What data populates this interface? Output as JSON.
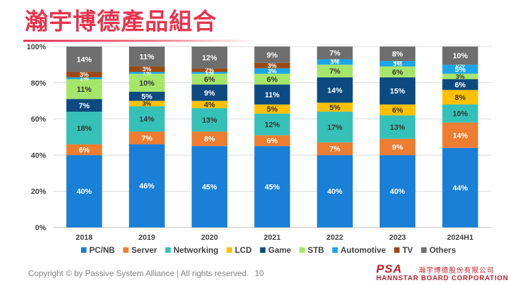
{
  "slide": {
    "title": "瀚宇博德產品組合",
    "copyright": "Copyright © by Passive System Alliance | All rights reserved.",
    "page_number": "10",
    "logo_mark": "PSA",
    "logo_company_cn": "瀚宇博德股份有限公司",
    "logo_company_en": "HANNSTAR BOARD CORPORATION"
  },
  "colors": {
    "title": "#e8344e",
    "PC/NB": "#1a7fd6",
    "Server": "#ed7d31",
    "Networking": "#36c1b8",
    "LCD": "#ffc000",
    "Game": "#0c4a80",
    "STB": "#a5e66a",
    "Automotive": "#1ba5e8",
    "TV": "#9b4a12",
    "Others": "#6e6e6e"
  },
  "chart_data": {
    "type": "bar",
    "stacked": true,
    "categories": [
      "2018",
      "2019",
      "2020",
      "2021",
      "2022",
      "2023",
      "2024H1"
    ],
    "ylim": [
      0,
      100
    ],
    "yticks": [
      "0%",
      "20%",
      "40%",
      "60%",
      "80%",
      "100%"
    ],
    "grid": true,
    "legend_position": "bottom",
    "series": [
      {
        "name": "PC/NB",
        "values": [
          40,
          46,
          45,
          45,
          40,
          40,
          44
        ],
        "labels": [
          "40%",
          "46%",
          "45%",
          "45%",
          "40%",
          "40%",
          "44%"
        ]
      },
      {
        "name": "Server",
        "values": [
          6,
          7,
          8,
          6,
          7,
          9,
          14
        ],
        "labels": [
          "6%",
          "7%",
          "8%",
          "6%",
          "7%",
          "9%",
          "14%"
        ]
      },
      {
        "name": "Networking",
        "values": [
          18,
          14,
          13,
          12,
          17,
          13,
          10
        ],
        "labels": [
          "18%",
          "14%",
          "13%",
          "12%",
          "17%",
          "13%",
          "10%"
        ]
      },
      {
        "name": "LCD",
        "values": [
          0,
          3,
          4,
          5,
          5,
          6,
          8
        ],
        "labels": [
          "",
          "3%",
          "4%",
          "5%",
          "5%",
          "6%",
          "8%"
        ]
      },
      {
        "name": "Game",
        "values": [
          7,
          5,
          9,
          11,
          14,
          15,
          6
        ],
        "labels": [
          "7%",
          "5%",
          "9%",
          "11%",
          "14%",
          "15%",
          "6%"
        ]
      },
      {
        "name": "STB",
        "values": [
          11,
          10,
          6,
          6,
          7,
          6,
          3
        ],
        "labels": [
          "11%",
          "10%",
          "6%",
          "6%",
          "7%",
          "6%",
          "3%"
        ]
      },
      {
        "name": "Automotive",
        "values": [
          1,
          1,
          1,
          3,
          3,
          3,
          5
        ],
        "labels": [
          "1%",
          "1%",
          "1%",
          "3%",
          "3%",
          "3%",
          "5%"
        ]
      },
      {
        "name": "TV",
        "values": [
          3,
          3,
          2,
          3,
          0,
          0,
          0
        ],
        "labels": [
          "3%",
          "3%",
          "2%",
          "3%",
          "0%",
          "0%",
          "0%"
        ]
      },
      {
        "name": "Others",
        "values": [
          14,
          11,
          12,
          9,
          7,
          8,
          10
        ],
        "labels": [
          "14%",
          "11%",
          "12%",
          "9%",
          "7%",
          "8%",
          "10%"
        ]
      }
    ]
  }
}
